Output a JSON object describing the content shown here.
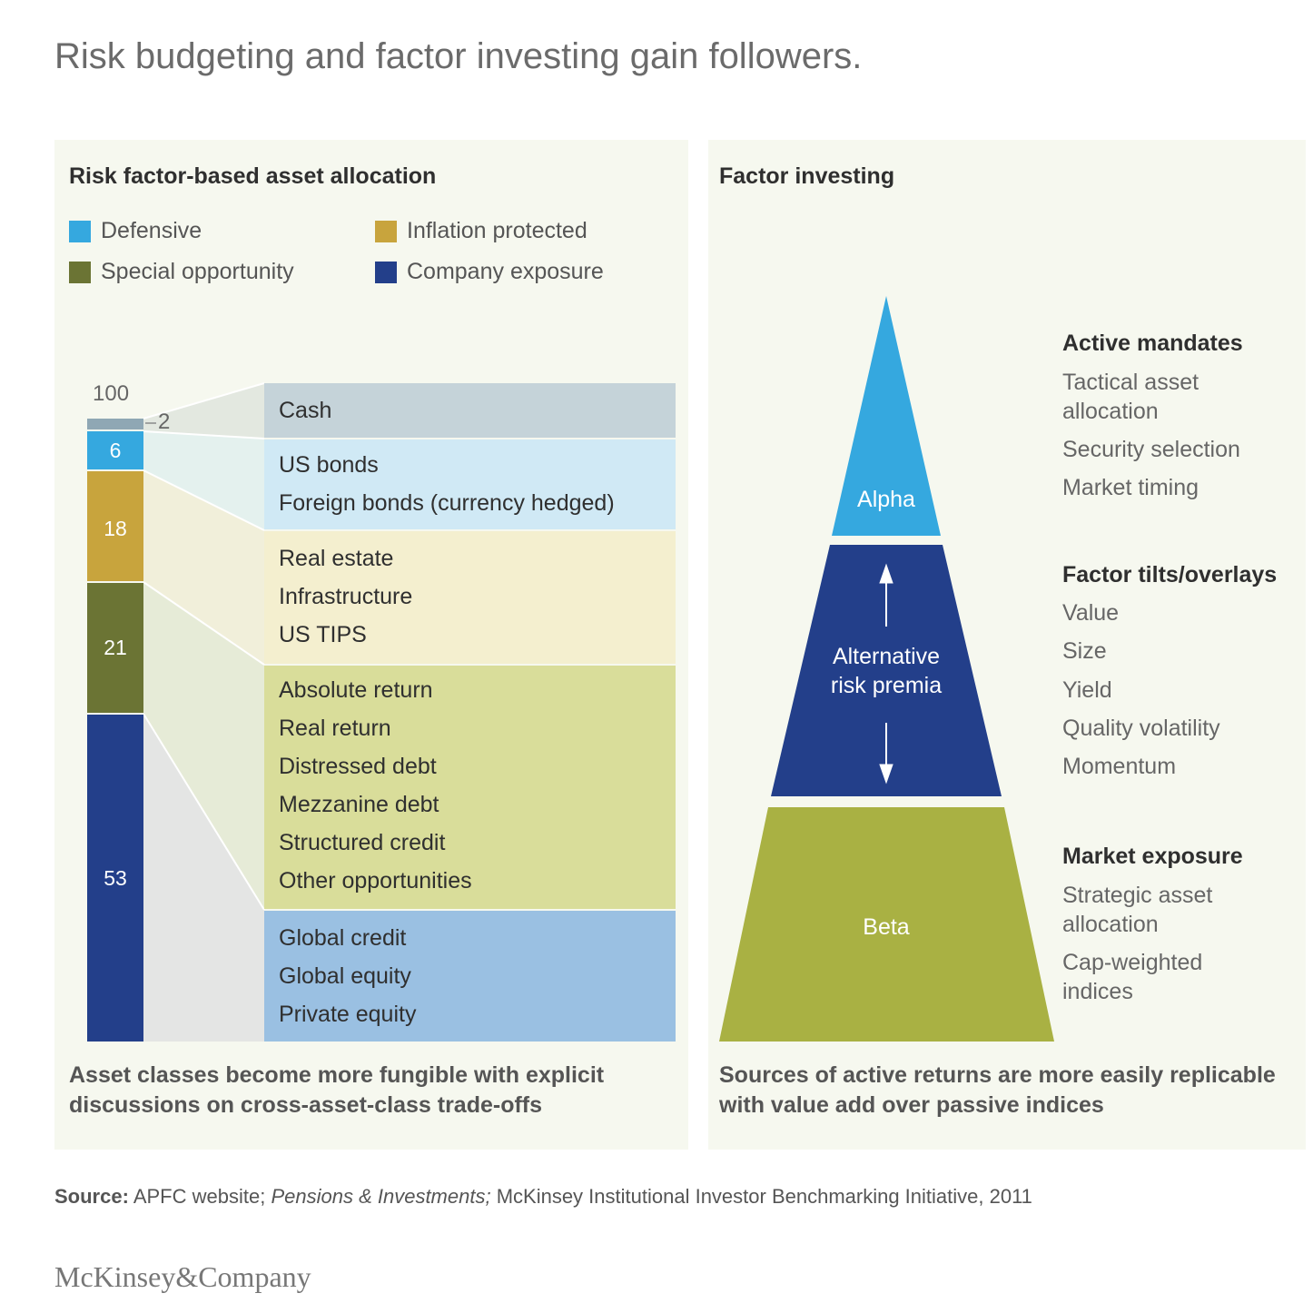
{
  "title": "Risk budgeting and factor investing gain followers.",
  "left": {
    "heading": "Risk factor-based asset allocation",
    "legend": [
      {
        "label": "Defensive",
        "color": "#35a8df"
      },
      {
        "label": "Inflation protected",
        "color": "#c8a43d"
      },
      {
        "label": "Special opportunity",
        "color": "#6b7434"
      },
      {
        "label": "Company exposure",
        "color": "#233f8a"
      }
    ],
    "total_label": "100",
    "segments": [
      {
        "value": "2",
        "color": "#8fa7b4"
      },
      {
        "value": "6",
        "color": "#35a8df"
      },
      {
        "value": "18",
        "color": "#c8a43d"
      },
      {
        "value": "21",
        "color": "#6b7434"
      },
      {
        "value": "53",
        "color": "#233f8a"
      }
    ],
    "boxes": [
      {
        "items": [
          "Cash"
        ],
        "color": "#c5d3d9"
      },
      {
        "items": [
          "US bonds",
          "Foreign bonds (currency hedged)"
        ],
        "color": "#d0e9f5"
      },
      {
        "items": [
          "Real estate",
          "Infrastructure",
          "US TIPS"
        ],
        "color": "#f4efcf"
      },
      {
        "items": [
          "Absolute return",
          "Real return",
          "Distressed debt",
          "Mezzanine debt",
          "Structured credit",
          "Other opportunities"
        ],
        "color": "#d9dd9a"
      },
      {
        "items": [
          "Global credit",
          "Global equity",
          "Private equity"
        ],
        "color": "#9ac0e2"
      }
    ],
    "caption": "Asset classes become more fungible with explicit discussions on cross-asset-class trade-offs"
  },
  "right": {
    "heading": "Factor investing",
    "tiers": [
      {
        "label": "Alpha",
        "color": "#35a8df"
      },
      {
        "label": "Alternative risk premia",
        "color": "#233f8a"
      },
      {
        "label": "Beta",
        "color": "#a9b143"
      }
    ],
    "groups": [
      {
        "heading": "Active mandates",
        "items": [
          "Tactical asset allocation",
          "Security selection",
          "Market timing"
        ]
      },
      {
        "heading": "Factor tilts/overlays",
        "items": [
          "Value",
          "Size",
          "Yield",
          "Quality volatility",
          "Momentum"
        ]
      },
      {
        "heading": "Market exposure",
        "items": [
          "Strategic asset allocation",
          "Cap-weighted indices"
        ]
      }
    ],
    "caption": "Sources of active returns are more easily replicable with value add over passive indices"
  },
  "source": {
    "label": "Source:",
    "part1": "APFC website;",
    "italic": "Pensions & Investments;",
    "part2": "McKinsey Institutional Investor Benchmarking Initiative, 2011"
  },
  "brand": "McKinsey&Company"
}
